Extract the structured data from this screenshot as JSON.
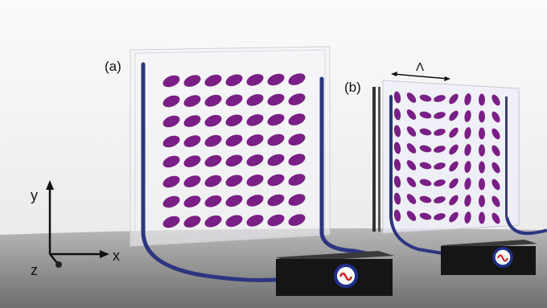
{
  "labels": {
    "panel_a": "(a)",
    "panel_b": "(b)",
    "period": "Λ",
    "axis_y": "y",
    "axis_x": "x",
    "axis_z": "z"
  }
}
